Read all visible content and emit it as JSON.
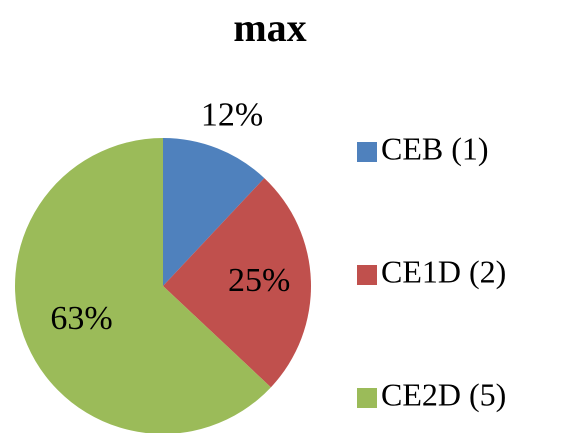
{
  "chart_data": {
    "type": "pie",
    "title": "max",
    "categories": [
      "CEB (1)",
      "CE1D (2)",
      "CE2D (5)"
    ],
    "values": [
      12,
      25,
      63
    ],
    "value_labels": [
      "12%",
      "25%",
      "63%"
    ],
    "colors": [
      "#4f81bd",
      "#c0504d",
      "#9bbb59"
    ],
    "legend": "right"
  }
}
